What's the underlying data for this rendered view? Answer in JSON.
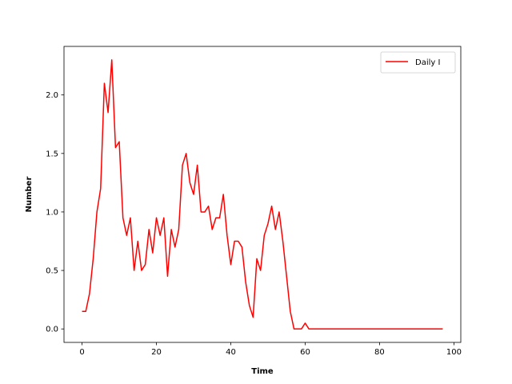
{
  "chart_data": {
    "type": "line",
    "xlabel": "Time",
    "ylabel": "Number",
    "xlim": [
      -4.85,
      101.85
    ],
    "ylim": [
      -0.115,
      2.415
    ],
    "xticks": [
      0,
      20,
      40,
      60,
      80,
      100
    ],
    "yticks": [
      0.0,
      0.5,
      1.0,
      1.5,
      2.0
    ],
    "xtick_labels": [
      "0",
      "20",
      "40",
      "60",
      "80",
      "100"
    ],
    "ytick_labels": [
      "0.0",
      "0.5",
      "1.0",
      "1.5",
      "2.0"
    ],
    "grid": false,
    "legend_position": "top-right",
    "series": [
      {
        "name": "Daily I",
        "color": "#ff0000",
        "x": [
          0,
          1,
          2,
          3,
          4,
          5,
          6,
          7,
          8,
          9,
          10,
          11,
          12,
          13,
          14,
          15,
          16,
          17,
          18,
          19,
          20,
          21,
          22,
          23,
          24,
          25,
          26,
          27,
          28,
          29,
          30,
          31,
          32,
          33,
          34,
          35,
          36,
          37,
          38,
          39,
          40,
          41,
          42,
          43,
          44,
          45,
          46,
          47,
          48,
          49,
          50,
          51,
          52,
          53,
          54,
          55,
          56,
          57,
          58,
          59,
          60,
          61,
          62,
          63,
          64,
          65,
          66,
          67,
          68,
          69,
          70,
          71,
          72,
          73,
          74,
          75,
          76,
          77,
          78,
          79,
          80,
          81,
          82,
          83,
          84,
          85,
          86,
          87,
          88,
          89,
          90,
          91,
          92,
          93,
          94,
          95,
          96,
          97
        ],
        "y": [
          0.15,
          0.15,
          0.3,
          0.6,
          1.0,
          1.2,
          2.1,
          1.85,
          2.3,
          1.55,
          1.6,
          0.95,
          0.8,
          0.95,
          0.5,
          0.75,
          0.5,
          0.55,
          0.85,
          0.65,
          0.95,
          0.8,
          0.95,
          0.45,
          0.85,
          0.7,
          0.85,
          1.4,
          1.5,
          1.25,
          1.15,
          1.4,
          1.0,
          1.0,
          1.05,
          0.85,
          0.95,
          0.95,
          1.15,
          0.8,
          0.55,
          0.75,
          0.75,
          0.7,
          0.4,
          0.2,
          0.1,
          0.6,
          0.5,
          0.8,
          0.9,
          1.05,
          0.85,
          1.0,
          0.75,
          0.45,
          0.15,
          0.0,
          0.0,
          0.0,
          0.05,
          0.0,
          0.0,
          0.0,
          0.0,
          0.0,
          0.0,
          0.0,
          0.0,
          0.0,
          0.0,
          0.0,
          0.0,
          0.0,
          0.0,
          0.0,
          0.0,
          0.0,
          0.0,
          0.0,
          0.0,
          0.0,
          0.0,
          0.0,
          0.0,
          0.0,
          0.0,
          0.0,
          0.0,
          0.0,
          0.0,
          0.0,
          0.0,
          0.0,
          0.0,
          0.0,
          0.0,
          0.0
        ]
      }
    ]
  }
}
